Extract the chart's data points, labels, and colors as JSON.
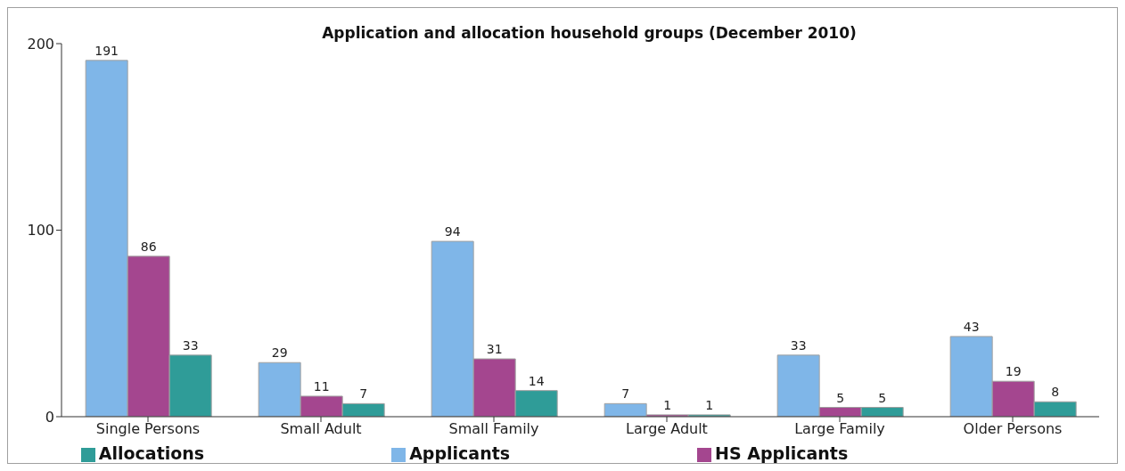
{
  "chart_data": {
    "type": "bar",
    "title": "Application and allocation household groups (December 2010)",
    "categories": [
      "Single Persons",
      "Small Adult",
      "Small Family",
      "Large Adult",
      "Large Family",
      "Older Persons"
    ],
    "series": [
      {
        "name": "Applicants",
        "color": "#7fb6e8",
        "values": [
          191,
          29,
          94,
          7,
          33,
          43
        ]
      },
      {
        "name": "HS Applicants",
        "color": "#a4468f",
        "values": [
          86,
          11,
          31,
          1,
          5,
          19
        ]
      },
      {
        "name": "Allocations",
        "color": "#2f9c98",
        "values": [
          33,
          7,
          14,
          1,
          5,
          8
        ]
      }
    ],
    "ylim": [
      0,
      200
    ],
    "yticks": [
      0,
      100,
      200
    ],
    "legend": "bottom",
    "data_labels": true
  }
}
